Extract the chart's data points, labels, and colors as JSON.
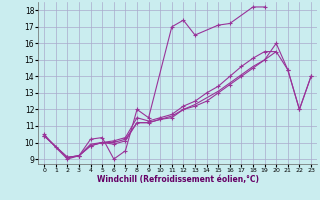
{
  "xlabel": "Windchill (Refroidissement éolien,°C)",
  "xlim": [
    -0.5,
    23.5
  ],
  "ylim": [
    8.7,
    18.5
  ],
  "xticks": [
    0,
    1,
    2,
    3,
    4,
    5,
    6,
    7,
    8,
    9,
    10,
    11,
    12,
    13,
    14,
    15,
    16,
    17,
    18,
    19,
    20,
    21,
    22,
    23
  ],
  "yticks": [
    9,
    10,
    11,
    12,
    13,
    14,
    15,
    16,
    17,
    18
  ],
  "bg": "#caedef",
  "lc": "#993399",
  "curve1_x": [
    0,
    1,
    2,
    3,
    4,
    5,
    6,
    7,
    8,
    9,
    11,
    12,
    13,
    15,
    16,
    18,
    19
  ],
  "curve1_y": [
    10.5,
    9.7,
    9.0,
    9.2,
    10.2,
    10.3,
    9.0,
    9.5,
    12.0,
    11.5,
    17.0,
    17.4,
    16.5,
    17.1,
    17.2,
    18.2,
    18.2
  ],
  "curve2_x": [
    0,
    2,
    3,
    4,
    5,
    6,
    7,
    8,
    9,
    10,
    11,
    12,
    13,
    14,
    15,
    16,
    17,
    18,
    19,
    20,
    21,
    22,
    23
  ],
  "curve2_y": [
    10.4,
    9.1,
    9.2,
    9.8,
    10.0,
    10.1,
    10.3,
    11.5,
    11.3,
    11.5,
    11.7,
    12.2,
    12.5,
    13.0,
    13.4,
    14.0,
    14.6,
    15.1,
    15.5,
    15.5,
    14.4,
    12.0,
    14.0
  ],
  "curve3_x": [
    0,
    2,
    3,
    4,
    5,
    6,
    7,
    8,
    9,
    10,
    11,
    12,
    13,
    14,
    15,
    16,
    17,
    18,
    19,
    20,
    21,
    22,
    23
  ],
  "curve3_y": [
    10.4,
    9.1,
    9.2,
    9.8,
    10.0,
    9.9,
    10.1,
    11.2,
    11.2,
    11.4,
    11.5,
    12.0,
    12.2,
    12.5,
    13.0,
    13.5,
    14.0,
    14.5,
    15.0,
    16.0,
    14.4,
    12.0,
    14.0
  ],
  "curve4_x": [
    0,
    2,
    3,
    4,
    5,
    6,
    7,
    8,
    9,
    10,
    11,
    12,
    13,
    14,
    15,
    16,
    17,
    18,
    19,
    20
  ],
  "curve4_y": [
    10.4,
    9.1,
    9.2,
    9.9,
    10.0,
    10.0,
    10.2,
    11.2,
    11.2,
    11.4,
    11.6,
    12.0,
    12.3,
    12.7,
    13.1,
    13.6,
    14.1,
    14.6,
    15.0,
    15.5
  ]
}
